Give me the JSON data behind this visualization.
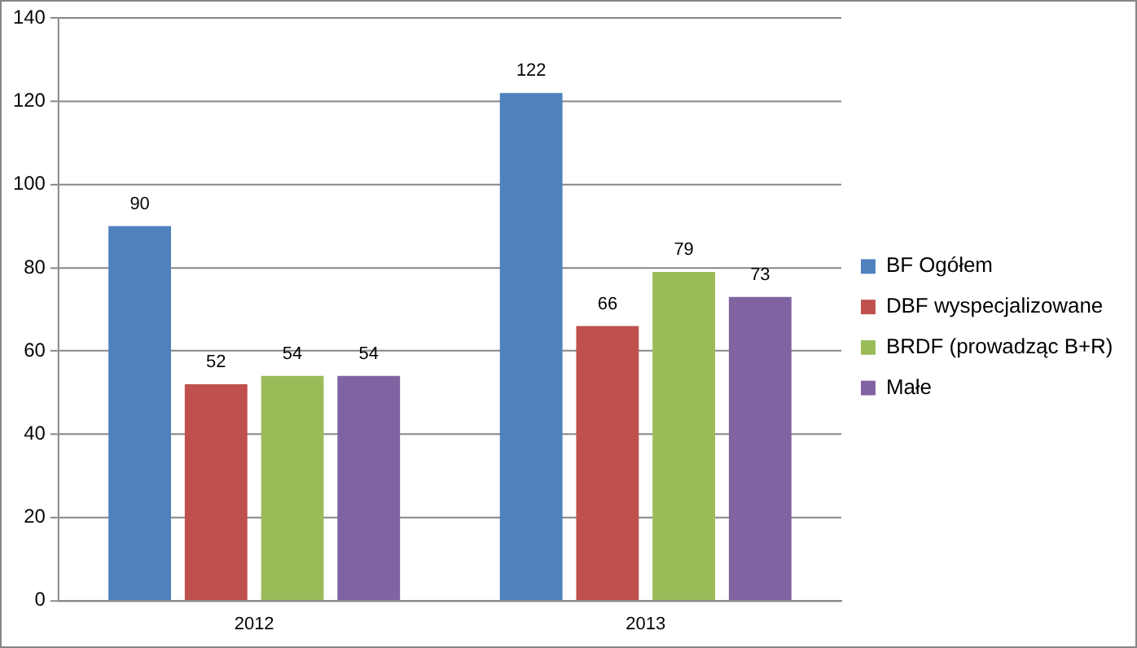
{
  "chart_data": {
    "type": "bar",
    "categories": [
      "2012",
      "2013"
    ],
    "series": [
      {
        "name": "BF Ogółem",
        "color": "#4f81bd",
        "values": [
          90,
          122
        ]
      },
      {
        "name": "DBF wyspecjalizowane",
        "color": "#c0504d",
        "values": [
          52,
          66
        ]
      },
      {
        "name": "BRDF (prowadząc B+R)",
        "color": "#9bbb59",
        "values": [
          54,
          79
        ]
      },
      {
        "name": "Małe",
        "color": "#8064a2",
        "values": [
          54,
          73
        ]
      }
    ],
    "ylim": [
      0,
      140
    ],
    "yticks": [
      0,
      20,
      40,
      60,
      80,
      100,
      120,
      140
    ],
    "grid": "y",
    "legend": "right",
    "data_labels": true
  }
}
